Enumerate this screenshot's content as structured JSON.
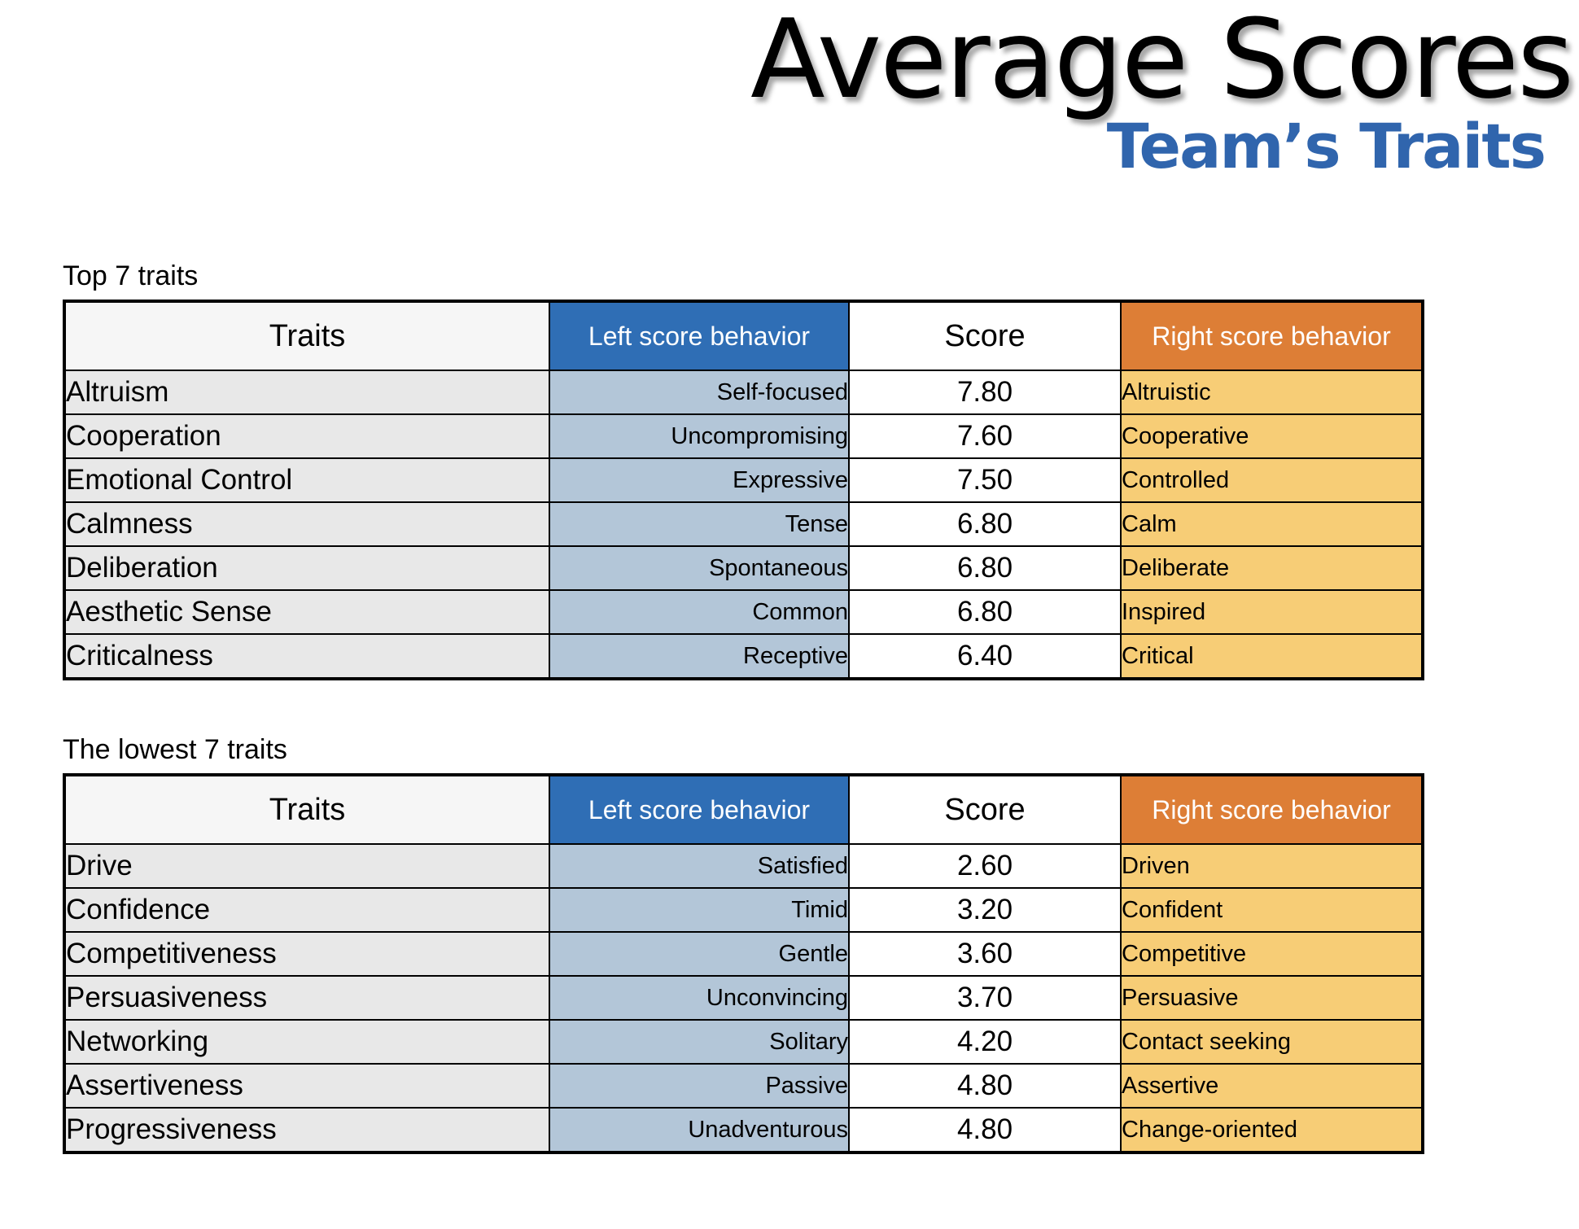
{
  "header": {
    "title": "Average Scores",
    "subtitle": "Team’s Traits"
  },
  "columns": {
    "traits": "Traits",
    "left": "Left score behavior",
    "score": "Score",
    "right": "Right score behavior"
  },
  "top_section": {
    "label": "Top 7 traits",
    "rows": [
      {
        "trait": "Altruism",
        "left": "Self-focused",
        "score": "7.80",
        "right": "Altruistic"
      },
      {
        "trait": "Cooperation",
        "left": "Uncompromising",
        "score": "7.60",
        "right": "Cooperative"
      },
      {
        "trait": "Emotional Control",
        "left": "Expressive",
        "score": "7.50",
        "right": "Controlled"
      },
      {
        "trait": "Calmness",
        "left": "Tense",
        "score": "6.80",
        "right": "Calm"
      },
      {
        "trait": "Deliberation",
        "left": "Spontaneous",
        "score": "6.80",
        "right": "Deliberate"
      },
      {
        "trait": "Aesthetic Sense",
        "left": "Common",
        "score": "6.80",
        "right": "Inspired"
      },
      {
        "trait": "Criticalness",
        "left": "Receptive",
        "score": "6.40",
        "right": "Critical"
      }
    ]
  },
  "bottom_section": {
    "label": "The lowest 7 traits",
    "rows": [
      {
        "trait": "Drive",
        "left": "Satisfied",
        "score": "2.60",
        "right": "Driven"
      },
      {
        "trait": "Confidence",
        "left": "Timid",
        "score": "3.20",
        "right": "Confident"
      },
      {
        "trait": "Competitiveness",
        "left": "Gentle",
        "score": "3.60",
        "right": "Competitive"
      },
      {
        "trait": "Persuasiveness",
        "left": "Unconvincing",
        "score": "3.70",
        "right": "Persuasive"
      },
      {
        "trait": "Networking",
        "left": "Solitary",
        "score": "4.20",
        "right": "Contact seeking"
      },
      {
        "trait": "Assertiveness",
        "left": "Passive",
        "score": "4.80",
        "right": "Assertive"
      },
      {
        "trait": "Progressiveness",
        "left": "Unadventurous",
        "score": "4.80",
        "right": "Change-oriented"
      }
    ]
  },
  "colors": {
    "subtitle": "#3065ad",
    "left_header": "#2f6eb5",
    "left_cells": "#b3c6d8",
    "right_header": "#dd7e36",
    "right_cells": "#f7cd76",
    "trait_cells": "#e8e8e8"
  }
}
